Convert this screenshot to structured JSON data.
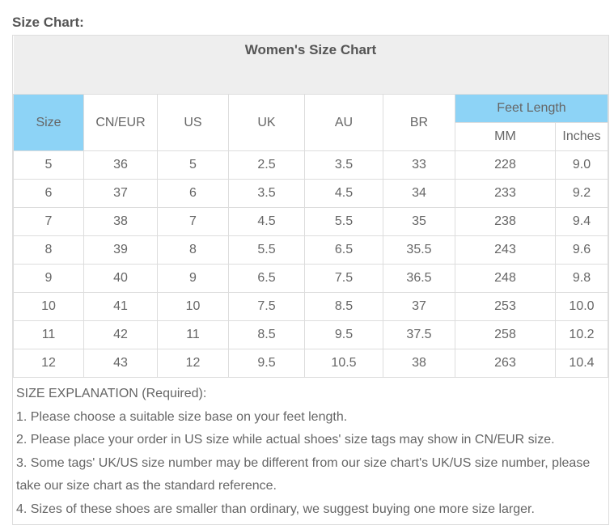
{
  "heading": "Size Chart:",
  "table": {
    "title": "Women's Size Chart",
    "headers": [
      "Size",
      "CN/EUR",
      "US",
      "UK",
      "AU",
      "BR"
    ],
    "feet_length": "Feet Length",
    "sub_headers": [
      "MM",
      "Inches"
    ],
    "header_highlight_color": "#8dd3f6",
    "rows": [
      [
        "5",
        "36",
        "5",
        "2.5",
        "3.5",
        "33",
        "228",
        "9.0"
      ],
      [
        "6",
        "37",
        "6",
        "3.5",
        "4.5",
        "34",
        "233",
        "9.2"
      ],
      [
        "7",
        "38",
        "7",
        "4.5",
        "5.5",
        "35",
        "238",
        "9.4"
      ],
      [
        "8",
        "39",
        "8",
        "5.5",
        "6.5",
        "35.5",
        "243",
        "9.6"
      ],
      [
        "9",
        "40",
        "9",
        "6.5",
        "7.5",
        "36.5",
        "248",
        "9.8"
      ],
      [
        "10",
        "41",
        "10",
        "7.5",
        "8.5",
        "37",
        "253",
        "10.0"
      ],
      [
        "11",
        "42",
        "11",
        "8.5",
        "9.5",
        "37.5",
        "258",
        "10.2"
      ],
      [
        "12",
        "43",
        "12",
        "9.5",
        "10.5",
        "38",
        "263",
        "10.4"
      ]
    ]
  },
  "explanation": {
    "title": "SIZE EXPLANATION (Required):",
    "lines": [
      "1. Please choose a suitable size base on your feet length.",
      "2. Please place your order in US size while actual shoes' size tags may show in CN/EUR size.",
      "3. Some tags' UK/US size number may be different from our size chart's UK/US size number, please take our size chart as the standard reference.",
      "4. Sizes of these shoes are smaller than ordinary, we suggest buying one more size larger."
    ]
  }
}
